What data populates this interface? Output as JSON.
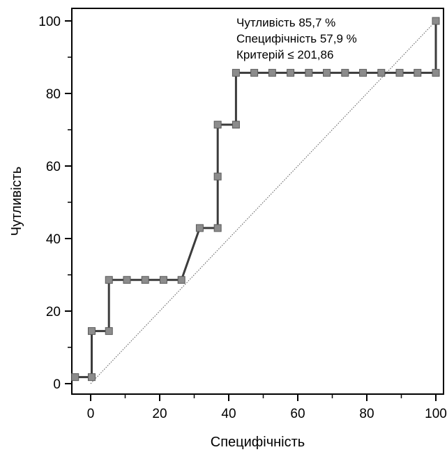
{
  "chart_data": {
    "type": "line",
    "title": "",
    "xlabel": "Специфічність",
    "ylabel": "Чутливість",
    "xlim": [
      -5,
      100
    ],
    "ylim": [
      0,
      100
    ],
    "x_ticks": [
      0,
      20,
      40,
      60,
      80,
      100
    ],
    "y_ticks": [
      0,
      20,
      40,
      60,
      80,
      100
    ],
    "x_tick_labels": [
      "0",
      "20",
      "40",
      "60",
      "80",
      "100"
    ],
    "y_tick_labels": [
      "0",
      "20",
      "40",
      "60",
      "80",
      "100"
    ],
    "grid": false,
    "annotations": [
      "Чутливість 85,7 %",
      "Специфічність 57,9 %",
      "Критерій ≤ 201,86"
    ],
    "reference_line": {
      "from": [
        0,
        0
      ],
      "to": [
        100,
        100
      ],
      "style": "dotted"
    },
    "series": [
      {
        "line_color": "#3c3c3c",
        "marker_color": "#8c8c8c",
        "x": [
          -4.5,
          0.3,
          0.3,
          5.3,
          5.3,
          10.5,
          15.8,
          21.1,
          26.3,
          31.6,
          36.8,
          36.8,
          36.8,
          42.1,
          42.1,
          47.4,
          52.6,
          57.9,
          63.2,
          68.4,
          73.7,
          78.9,
          84.2,
          89.5,
          94.7,
          100,
          100
        ],
        "y": [
          1.8,
          1.8,
          14.5,
          14.5,
          28.6,
          28.6,
          28.6,
          28.6,
          28.6,
          42.9,
          42.9,
          57.1,
          71.4,
          71.4,
          85.7,
          85.7,
          85.7,
          85.7,
          85.7,
          85.7,
          85.7,
          85.7,
          85.7,
          85.7,
          85.7,
          85.7,
          100
        ]
      }
    ]
  }
}
